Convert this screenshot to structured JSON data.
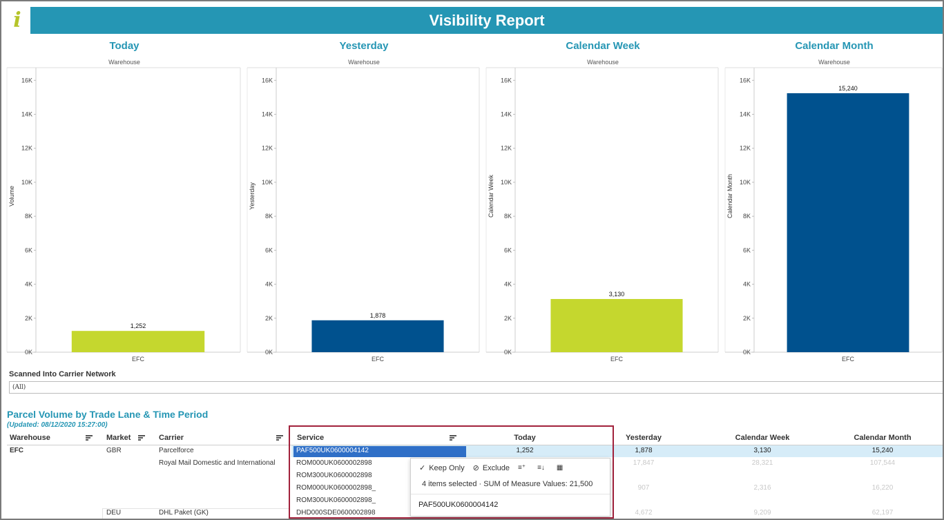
{
  "header": {
    "logo": "i",
    "title": "Visibility Report"
  },
  "chart_data": [
    {
      "type": "bar",
      "title": "Today",
      "subtitle": "Warehouse",
      "ylabel": "Volume",
      "categories": [
        "EFC"
      ],
      "values": [
        1252
      ],
      "value_labels": [
        "1,252"
      ],
      "ylim": [
        0,
        16500
      ],
      "yticks": [
        "0K",
        "2K",
        "4K",
        "6K",
        "8K",
        "10K",
        "12K",
        "14K",
        "16K"
      ],
      "color": "#c5d72e"
    },
    {
      "type": "bar",
      "title": "Yesterday",
      "subtitle": "Warehouse",
      "ylabel": "Yesterday",
      "categories": [
        "EFC"
      ],
      "values": [
        1878
      ],
      "value_labels": [
        "1,878"
      ],
      "ylim": [
        0,
        16500
      ],
      "yticks": [
        "0K",
        "2K",
        "4K",
        "6K",
        "8K",
        "10K",
        "12K",
        "14K",
        "16K"
      ],
      "color": "#00518e"
    },
    {
      "type": "bar",
      "title": "Calendar Week",
      "subtitle": "Warehouse",
      "ylabel": "Calendar Week",
      "categories": [
        "EFC"
      ],
      "values": [
        3130
      ],
      "value_labels": [
        "3,130"
      ],
      "ylim": [
        0,
        16500
      ],
      "yticks": [
        "0K",
        "2K",
        "4K",
        "6K",
        "8K",
        "10K",
        "12K",
        "14K",
        "16K"
      ],
      "color": "#c5d72e"
    },
    {
      "type": "bar",
      "title": "Calendar Month",
      "subtitle": "Warehouse",
      "ylabel": "Calendar Month",
      "categories": [
        "EFC"
      ],
      "values": [
        15240
      ],
      "value_labels": [
        "15,240"
      ],
      "ylim": [
        0,
        16500
      ],
      "yticks": [
        "0K",
        "2K",
        "4K",
        "6K",
        "8K",
        "10K",
        "12K",
        "14K",
        "16K"
      ],
      "color": "#00518e"
    }
  ],
  "filter": {
    "label": "Scanned Into Carrier Network",
    "value": "(All)"
  },
  "table": {
    "title": "Parcel Volume by Trade Lane & Time Period",
    "updated": "(Updated:  08/12/2020 15:27:00)",
    "headers": {
      "warehouse": "Warehouse",
      "market": "Market",
      "carrier": "Carrier",
      "service": "Service",
      "today": "Today",
      "yesterday": "Yesterday",
      "week": "Calendar Week",
      "month": "Calendar Month"
    },
    "warehouse": "EFC",
    "market_gbr": "GBR",
    "market_deu": "DEU",
    "carriers": [
      "Parcelforce",
      "Royal Mail Domestic and International",
      "DHL Paket (GK)"
    ],
    "rows": [
      {
        "service": "PAF500UK0600004142",
        "today": "1,252",
        "yesterday": "1,878",
        "week": "3,130",
        "month": "15,240"
      },
      {
        "service": "ROM000UK0600002898",
        "today": "",
        "yesterday": "17,847",
        "week": "28,321",
        "month": "107,544"
      },
      {
        "service": "ROM300UK0600002898",
        "today": "",
        "yesterday": "",
        "week": "",
        "month": ""
      },
      {
        "service": "ROM000UK0600002898_",
        "today": "",
        "yesterday": "907",
        "week": "2,316",
        "month": "16,220"
      },
      {
        "service": "ROM300UK0600002898_",
        "today": "",
        "yesterday": "",
        "week": "",
        "month": ""
      },
      {
        "service": "DHD000SDE0600002898",
        "today": "",
        "yesterday": "4,672",
        "week": "9,209",
        "month": "62,197"
      }
    ]
  },
  "tooltip": {
    "keep_only": "Keep Only",
    "exclude": "Exclude",
    "summary": "4 items selected  ·  SUM of Measure Values: 21,500",
    "value": "PAF500UK0600004142"
  }
}
